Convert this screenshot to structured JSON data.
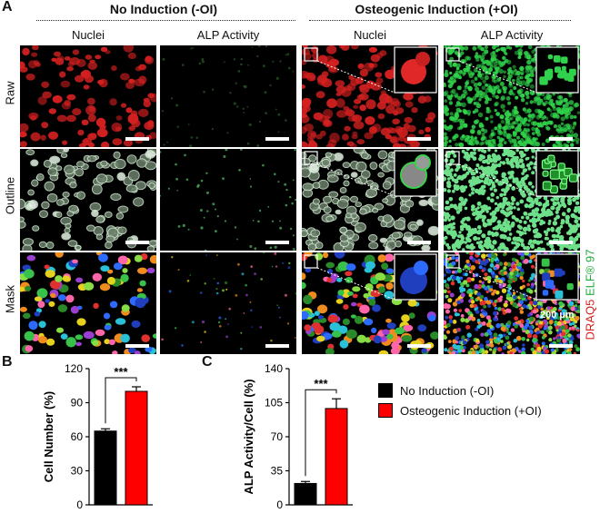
{
  "figure_a": {
    "panel_letter": "A",
    "group_left": "No Induction (-OI)",
    "group_right": "Osteogenic Induction (+OI)",
    "col_labels": [
      "Nuclei",
      "ALP Activity",
      "Nuclei",
      "ALP Activity"
    ],
    "row_labels": [
      "Raw",
      "Outline",
      "Mask"
    ],
    "stain_red": "DRAQ5",
    "stain_green": "ELF® 97",
    "scale_label": "200 µm",
    "colors": {
      "nuclei": "#d42020",
      "alp": "#2fd24a",
      "outline": "#cfe8cf"
    }
  },
  "chart_data": [
    {
      "type": "bar",
      "panel_letter": "B",
      "categories": [
        "No Induction (-OI)",
        "Osteogenic Induction (+OI)"
      ],
      "values": [
        65,
        100
      ],
      "errors": [
        2,
        4
      ],
      "colors": [
        "#000000",
        "#ff0000"
      ],
      "ylabel": "Cell Number (%)",
      "ylim": [
        0,
        120
      ],
      "yticks": [
        "0",
        "30",
        "60",
        "90",
        "120"
      ],
      "significance": "***",
      "grid": false
    },
    {
      "type": "bar",
      "panel_letter": "C",
      "categories": [
        "No Induction (-OI)",
        "Osteogenic Induction (+OI)"
      ],
      "values": [
        22,
        99
      ],
      "errors": [
        2,
        10
      ],
      "colors": [
        "#000000",
        "#ff0000"
      ],
      "ylabel": "ALP Activity/Cell (%)",
      "ylim": [
        0,
        140
      ],
      "yticks": [
        "0",
        "35",
        "70",
        "105",
        "140"
      ],
      "significance": "***",
      "grid": false
    }
  ],
  "legend": {
    "placement": "right",
    "items": [
      {
        "label": "No Induction (-OI)",
        "color": "#000000"
      },
      {
        "label": "Osteogenic Induction (+OI)",
        "color": "#ff0000"
      }
    ]
  }
}
